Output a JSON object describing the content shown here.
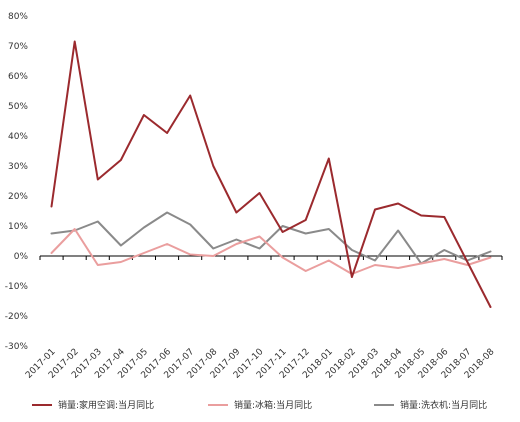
{
  "chart_data": {
    "type": "line",
    "categories": [
      "2017-01",
      "2017-02",
      "2017-03",
      "2017-04",
      "2017-05",
      "2017-06",
      "2017-07",
      "2017-08",
      "2017-09",
      "2017-10",
      "2017-11",
      "2017-12",
      "2018-01",
      "2018-02",
      "2018-03",
      "2018-04",
      "2018-05",
      "2018-06",
      "2018-07",
      "2018-08"
    ],
    "ylim": [
      -30,
      80
    ],
    "ytick_step": 10,
    "y_tick_labels": [
      "80%",
      "70%",
      "60%",
      "50%",
      "40%",
      "30%",
      "20%",
      "10%",
      "0%",
      "-10%",
      "-20%",
      "-30%"
    ],
    "grid": false,
    "legend_position": "bottom",
    "series": [
      {
        "name": "销量:家用空调:当月同比",
        "color": "#9b2a2e",
        "values": [
          16.5,
          71.5,
          25.5,
          32,
          47,
          41,
          53.5,
          30,
          14.5,
          21,
          8,
          12,
          32.5,
          -7,
          15.5,
          17.5,
          13.5,
          13,
          -2,
          -17
        ]
      },
      {
        "name": "销量:冰箱:当月同比",
        "color": "#ea9e9e",
        "values": [
          1,
          9,
          -3,
          -2,
          1,
          4,
          0.5,
          0,
          4,
          6.5,
          -0.5,
          -5,
          -1.5,
          -6,
          -3,
          -4,
          -2.5,
          -1,
          -3,
          -0.5
        ]
      },
      {
        "name": "销量:洗衣机:当月同比",
        "color": "#8a8a8a",
        "values": [
          7.5,
          8.5,
          11.5,
          3.5,
          9.5,
          14.5,
          10.5,
          2.5,
          5.5,
          2.5,
          10,
          7.5,
          9,
          2,
          -1.5,
          8.5,
          -2.5,
          2,
          -1.5,
          1.5
        ]
      }
    ]
  }
}
